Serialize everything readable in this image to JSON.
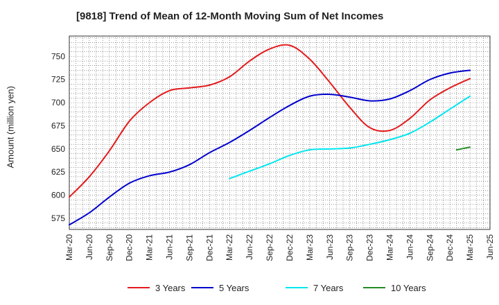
{
  "chart_data": {
    "type": "line",
    "title": "[9818]  Trend of Mean of 12-Month Moving Sum of Net Incomes",
    "xlabel": "",
    "ylabel": "Amount (million yen)",
    "xlim": [
      "2020-03",
      "2025-06"
    ],
    "ylim": [
      563,
      772
    ],
    "y_ticks": [
      575,
      600,
      625,
      650,
      675,
      700,
      725,
      750
    ],
    "x_tick_labels": [
      "Mar-20",
      "Jun-20",
      "Sep-20",
      "Dec-20",
      "Mar-21",
      "Jun-21",
      "Sep-21",
      "Dec-21",
      "Mar-22",
      "Jun-22",
      "Sep-22",
      "Dec-22",
      "Mar-23",
      "Jun-23",
      "Sep-23",
      "Dec-23",
      "Mar-24",
      "Jun-24",
      "Sep-24",
      "Dec-24",
      "Mar-25",
      "Jun-25"
    ],
    "grid": true,
    "legend_position": "bottom",
    "series": [
      {
        "name": "3 Years",
        "color": "#e31a1c",
        "points": [
          [
            "2020-03",
            598
          ],
          [
            "2020-06",
            620
          ],
          [
            "2020-09",
            648
          ],
          [
            "2020-12",
            680
          ],
          [
            "2021-03",
            700
          ],
          [
            "2021-06",
            713
          ],
          [
            "2021-09",
            716
          ],
          [
            "2021-12",
            719
          ],
          [
            "2022-03",
            728
          ],
          [
            "2022-06",
            745
          ],
          [
            "2022-09",
            758
          ],
          [
            "2022-12",
            762
          ],
          [
            "2023-03",
            747
          ],
          [
            "2023-06",
            722
          ],
          [
            "2023-09",
            695
          ],
          [
            "2023-12",
            673
          ],
          [
            "2024-03",
            670
          ],
          [
            "2024-06",
            683
          ],
          [
            "2024-09",
            703
          ],
          [
            "2024-12",
            716
          ],
          [
            "2025-03",
            726
          ]
        ]
      },
      {
        "name": "5 Years",
        "color": "#0000cc",
        "points": [
          [
            "2020-03",
            568
          ],
          [
            "2020-06",
            581
          ],
          [
            "2020-09",
            598
          ],
          [
            "2020-12",
            613
          ],
          [
            "2021-03",
            621
          ],
          [
            "2021-06",
            625
          ],
          [
            "2021-09",
            633
          ],
          [
            "2021-12",
            646
          ],
          [
            "2022-03",
            657
          ],
          [
            "2022-06",
            670
          ],
          [
            "2022-09",
            684
          ],
          [
            "2022-12",
            697
          ],
          [
            "2023-03",
            707
          ],
          [
            "2023-06",
            709
          ],
          [
            "2023-09",
            706
          ],
          [
            "2023-12",
            702
          ],
          [
            "2024-03",
            704
          ],
          [
            "2024-06",
            713
          ],
          [
            "2024-09",
            725
          ],
          [
            "2024-12",
            732
          ],
          [
            "2025-03",
            735
          ]
        ]
      },
      {
        "name": "7 Years",
        "color": "#00e5ee",
        "points": [
          [
            "2022-03",
            618
          ],
          [
            "2022-06",
            626
          ],
          [
            "2022-09",
            634
          ],
          [
            "2022-12",
            643
          ],
          [
            "2023-03",
            649
          ],
          [
            "2023-06",
            650
          ],
          [
            "2023-09",
            651
          ],
          [
            "2023-12",
            655
          ],
          [
            "2024-03",
            660
          ],
          [
            "2024-06",
            667
          ],
          [
            "2024-09",
            679
          ],
          [
            "2024-12",
            693
          ],
          [
            "2025-03",
            707
          ]
        ]
      },
      {
        "name": "10 Years",
        "color": "#228b22",
        "points": [
          [
            "2025-01",
            649
          ],
          [
            "2025-03",
            652
          ]
        ]
      }
    ]
  }
}
